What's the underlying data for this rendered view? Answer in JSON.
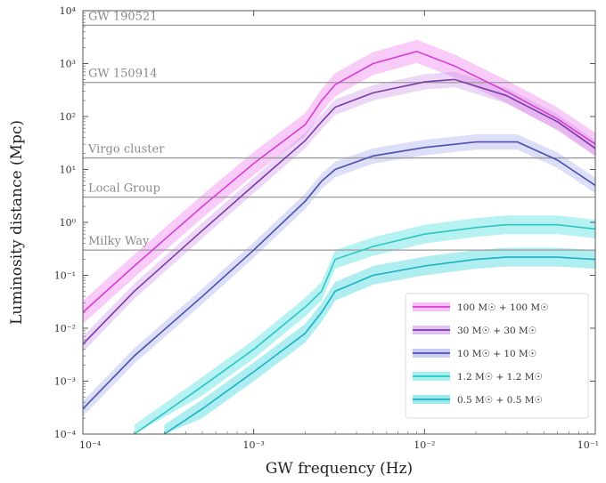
{
  "chart_data": {
    "type": "line",
    "title": "",
    "xlabel": "GW frequency (Hz)",
    "ylabel": "Luminosity distance (Mpc)",
    "xscale": "log",
    "yscale": "log",
    "xlim": [
      0.0001,
      0.1
    ],
    "ylim": [
      0.0001,
      10000
    ],
    "grid": false,
    "legend_position": "lower-right",
    "x_ticks": [
      "10⁻⁴",
      "10⁻³",
      "10⁻²",
      "10⁻¹"
    ],
    "y_ticks": [
      "10⁻⁴",
      "10⁻³",
      "10⁻²",
      "10⁻¹",
      "10⁰",
      "10¹",
      "10²",
      "10³",
      "10⁴"
    ],
    "reference_lines": [
      {
        "label": "GW 190521",
        "value": 5300
      },
      {
        "label": "GW 150914",
        "value": 440
      },
      {
        "label": "Virgo cluster",
        "value": 16.5
      },
      {
        "label": "Local Group",
        "value": 3
      },
      {
        "label": "Milky Way",
        "value": 0.3
      }
    ],
    "series": [
      {
        "name": "100 M☉ + 100 M☉",
        "color": "#d43fd4",
        "band_color": "#f08cf0",
        "band_opacity": 0.45,
        "band_factor": 1.65,
        "x": [
          0.0001,
          0.0002,
          0.0005,
          0.001,
          0.002,
          0.0025,
          0.003,
          0.005,
          0.009,
          0.015,
          0.03,
          0.06,
          0.1
        ],
        "y": [
          0.02,
          0.15,
          2.0,
          13,
          70,
          200,
          400,
          1000,
          1700,
          900,
          300,
          90,
          30
        ]
      },
      {
        "name": "30 M☉ + 30 M☉",
        "color": "#7a3aa8",
        "band_color": "#c98ee6",
        "band_opacity": 0.35,
        "band_factor": 1.4,
        "x": [
          0.0001,
          0.0002,
          0.0005,
          0.001,
          0.002,
          0.0025,
          0.003,
          0.005,
          0.01,
          0.015,
          0.03,
          0.06,
          0.1
        ],
        "y": [
          0.005,
          0.05,
          0.7,
          5,
          35,
          80,
          150,
          280,
          450,
          500,
          250,
          80,
          25
        ]
      },
      {
        "name": "10 M☉ + 10 M☉",
        "color": "#4a4fb0",
        "band_color": "#9fa3ea",
        "band_opacity": 0.35,
        "band_factor": 1.4,
        "x": [
          0.0001,
          0.0002,
          0.0005,
          0.001,
          0.002,
          0.0025,
          0.003,
          0.005,
          0.01,
          0.02,
          0.035,
          0.06,
          0.1
        ],
        "y": [
          0.0003,
          0.003,
          0.04,
          0.3,
          2.5,
          6,
          10,
          18,
          26,
          33,
          33,
          15,
          5
        ]
      },
      {
        "name": "1.2 M☉ + 1.2 M☉",
        "color": "#2ec4c4",
        "band_color": "#5de3e0",
        "band_opacity": 0.45,
        "band_factor": 1.5,
        "x": [
          0.0002,
          0.0005,
          0.001,
          0.002,
          0.0025,
          0.003,
          0.005,
          0.01,
          0.02,
          0.03,
          0.06,
          0.1
        ],
        "y": [
          0.0001,
          0.0008,
          0.004,
          0.025,
          0.05,
          0.2,
          0.35,
          0.6,
          0.8,
          0.9,
          0.9,
          0.75
        ]
      },
      {
        "name": "0.5 M☉ + 0.5 M☉",
        "color": "#1cb0c4",
        "band_color": "#4cd6de",
        "band_opacity": 0.45,
        "band_factor": 1.5,
        "x": [
          0.0003,
          0.0005,
          0.001,
          0.002,
          0.0025,
          0.003,
          0.005,
          0.01,
          0.02,
          0.03,
          0.06,
          0.1
        ],
        "y": [
          0.0001,
          0.0003,
          0.0015,
          0.008,
          0.02,
          0.05,
          0.1,
          0.15,
          0.2,
          0.22,
          0.22,
          0.2
        ]
      }
    ]
  }
}
